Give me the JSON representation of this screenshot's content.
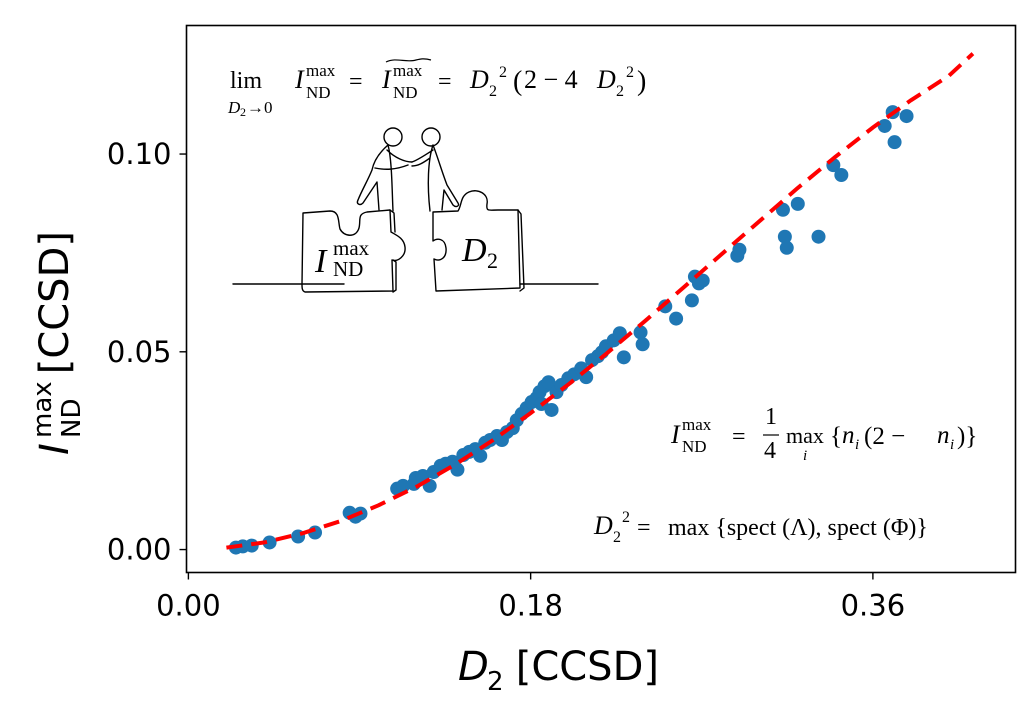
{
  "chart_data": {
    "type": "scatter",
    "title": "",
    "xlabel": "D2 [CCSD]",
    "xlabel_parts": {
      "symbol": "D",
      "subscript": "2",
      "unit": " [CCSD]"
    },
    "ylabel": "I_ND^max [CCSD]",
    "ylabel_parts": {
      "symbol": "I",
      "subscript": "ND",
      "superscript": "max",
      "unit": " [CCSD]"
    },
    "xlim": [
      -0.001,
      0.435
    ],
    "ylim": [
      -0.0058,
      0.1325
    ],
    "xticks": [
      0.0,
      0.18,
      0.36
    ],
    "xtick_labels": [
      "0.00",
      "0.18",
      "0.36"
    ],
    "yticks": [
      0.0,
      0.05,
      0.1
    ],
    "ytick_labels": [
      "0.00",
      "0.05",
      "0.10"
    ],
    "grid": false,
    "legend": null,
    "series": [
      {
        "name": "data points",
        "kind": "scatter",
        "color": "#1f77b4",
        "points": [
          [
            0.025,
            0.0005
          ],
          [
            0.0286,
            0.0008
          ],
          [
            0.0333,
            0.001
          ],
          [
            0.0427,
            0.0018
          ],
          [
            0.0577,
            0.0033
          ],
          [
            0.0666,
            0.0043
          ],
          [
            0.0848,
            0.0093
          ],
          [
            0.0879,
            0.0083
          ],
          [
            0.0905,
            0.0091
          ],
          [
            0.1098,
            0.0154
          ],
          [
            0.1129,
            0.0161
          ],
          [
            0.1186,
            0.0166
          ],
          [
            0.1196,
            0.0181
          ],
          [
            0.1233,
            0.0186
          ],
          [
            0.1269,
            0.0161
          ],
          [
            0.129,
            0.0196
          ],
          [
            0.1327,
            0.0212
          ],
          [
            0.1353,
            0.0217
          ],
          [
            0.1389,
            0.0222
          ],
          [
            0.1415,
            0.0202
          ],
          [
            0.1446,
            0.0239
          ],
          [
            0.1477,
            0.0247
          ],
          [
            0.1509,
            0.0254
          ],
          [
            0.1535,
            0.0237
          ],
          [
            0.1561,
            0.027
          ],
          [
            0.1587,
            0.0277
          ],
          [
            0.1623,
            0.0287
          ],
          [
            0.1649,
            0.0277
          ],
          [
            0.1675,
            0.0297
          ],
          [
            0.1706,
            0.0307
          ],
          [
            0.1727,
            0.0327
          ],
          [
            0.1753,
            0.0343
          ],
          [
            0.1779,
            0.0358
          ],
          [
            0.1805,
            0.0373
          ],
          [
            0.1831,
            0.0383
          ],
          [
            0.1847,
            0.0398
          ],
          [
            0.1873,
            0.0413
          ],
          [
            0.1857,
            0.0368
          ],
          [
            0.1894,
            0.0423
          ],
          [
            0.191,
            0.0353
          ],
          [
            0.1936,
            0.0398
          ],
          [
            0.1962,
            0.0416
          ],
          [
            0.1998,
            0.0433
          ],
          [
            0.2029,
            0.0443
          ],
          [
            0.2066,
            0.0458
          ],
          [
            0.2092,
            0.0436
          ],
          [
            0.2123,
            0.0479
          ],
          [
            0.2154,
            0.0489
          ],
          [
            0.2175,
            0.0499
          ],
          [
            0.2196,
            0.0514
          ],
          [
            0.2237,
            0.0529
          ],
          [
            0.2269,
            0.0547
          ],
          [
            0.229,
            0.0486
          ],
          [
            0.2378,
            0.0549
          ],
          [
            0.2389,
            0.0519
          ],
          [
            0.2508,
            0.0615
          ],
          [
            0.2565,
            0.0584
          ],
          [
            0.2648,
            0.063
          ],
          [
            0.2664,
            0.069
          ],
          [
            0.2685,
            0.0673
          ],
          [
            0.2705,
            0.068
          ],
          [
            0.2887,
            0.0743
          ],
          [
            0.2898,
            0.0758
          ],
          [
            0.3127,
            0.0859
          ],
          [
            0.3205,
            0.0874
          ],
          [
            0.3137,
            0.0791
          ],
          [
            0.3147,
            0.0763
          ],
          [
            0.3314,
            0.0791
          ],
          [
            0.3392,
            0.0972
          ],
          [
            0.3434,
            0.0947
          ],
          [
            0.3662,
            0.1071
          ],
          [
            0.3704,
            0.1106
          ],
          [
            0.3777,
            0.1096
          ],
          [
            0.3714,
            0.103
          ]
        ]
      },
      {
        "name": "fit curve",
        "kind": "line",
        "style": "dashed",
        "color": "#ff0000",
        "points": [
          [
            0.02,
            0.0005
          ],
          [
            0.04,
            0.0018
          ],
          [
            0.06,
            0.0041
          ],
          [
            0.08,
            0.0072
          ],
          [
            0.1,
            0.0112
          ],
          [
            0.12,
            0.0159
          ],
          [
            0.14,
            0.0214
          ],
          [
            0.16,
            0.0276
          ],
          [
            0.18,
            0.0345
          ],
          [
            0.2,
            0.0418
          ],
          [
            0.22,
            0.0496
          ],
          [
            0.24,
            0.0577
          ],
          [
            0.26,
            0.0661
          ],
          [
            0.28,
            0.0745
          ],
          [
            0.3,
            0.0829
          ],
          [
            0.32,
            0.0912
          ],
          [
            0.34,
            0.0992
          ],
          [
            0.36,
            0.1067
          ],
          [
            0.38,
            0.1136
          ],
          [
            0.4,
            0.1198
          ],
          [
            0.4126,
            0.1254
          ]
        ]
      }
    ],
    "annotations": [
      {
        "id": "limit-formula",
        "text": "lim_{D2→0} I_ND^max = Ĩ_ND^max = D2^2 (2 − 4 D2^2)",
        "placement": "top-left"
      },
      {
        "id": "ind-definition",
        "text": "I_ND^max = 1/4 max_i { n_i (2 − n_i) }",
        "placement": "right"
      },
      {
        "id": "d2-definition",
        "text": "D2^2 = max { spect(Λ), spect(Φ) }",
        "placement": "bottom-right"
      }
    ],
    "illustration": {
      "description": "two figures shaking hands standing on two interlocking puzzle pieces",
      "left_piece_label": {
        "symbol": "I",
        "subscript": "ND",
        "superscript": "max"
      },
      "right_piece_label": {
        "symbol": "D",
        "subscript": "2"
      }
    }
  },
  "text": {
    "lim": "lim",
    "lim_sub_D": "D",
    "lim_sub_2": "2",
    "lim_sub_arrow": "→0",
    "I": "I",
    "max": "max",
    "ND": "ND",
    "eq": "=",
    "D": "D",
    "two": "2",
    "sq": "2",
    "open_paren": "(",
    "close_paren": ")",
    "minus4": "2 − 4",
    "frac_num": "1",
    "frac_den": "4",
    "max_word": "max",
    "i_sub": "i",
    "n_expr_open": "{",
    "n": "n",
    "n_i": "i",
    "two_minus": "(2 − ",
    "close_n": ")}",
    "spect_expr": "max {spect (Λ), spect (Φ)}"
  }
}
